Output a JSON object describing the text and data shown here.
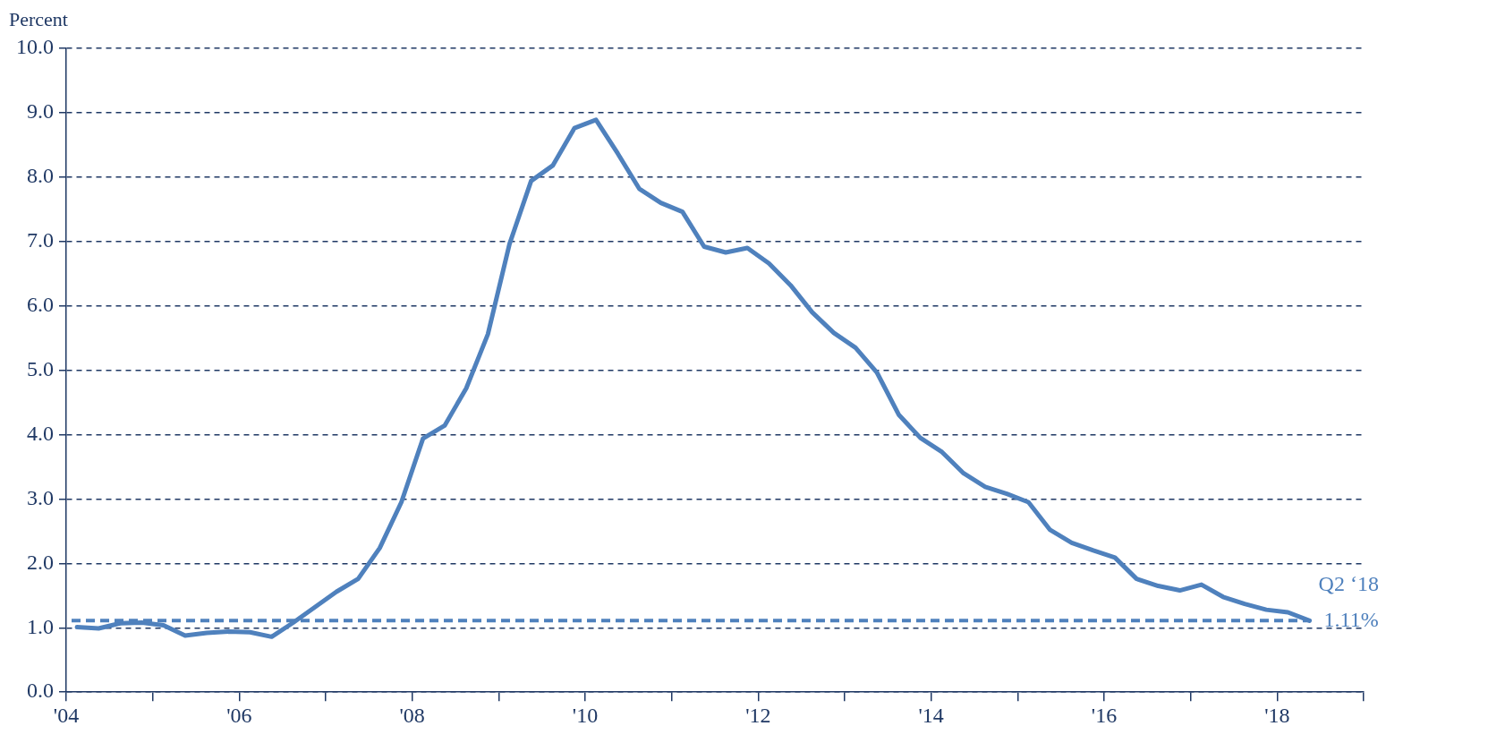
{
  "chart_data": {
    "type": "line",
    "ylabel": "Percent",
    "x": [
      2004.125,
      2004.375,
      2004.625,
      2004.875,
      2005.125,
      2005.375,
      2005.625,
      2005.875,
      2006.125,
      2006.375,
      2006.625,
      2006.875,
      2007.125,
      2007.375,
      2007.625,
      2007.875,
      2008.125,
      2008.375,
      2008.625,
      2008.875,
      2009.125,
      2009.375,
      2009.625,
      2009.875,
      2010.125,
      2010.375,
      2010.625,
      2010.875,
      2011.125,
      2011.375,
      2011.625,
      2011.875,
      2012.125,
      2012.375,
      2012.625,
      2012.875,
      2013.125,
      2013.375,
      2013.625,
      2013.875,
      2014.125,
      2014.375,
      2014.625,
      2014.875,
      2015.125,
      2015.375,
      2015.625,
      2015.875,
      2016.125,
      2016.375,
      2016.625,
      2016.875,
      2017.125,
      2017.375,
      2017.625,
      2017.875,
      2018.125,
      2018.375
    ],
    "series": [
      {
        "color": "#4f81bd",
        "values": [
          1.01,
          0.99,
          1.07,
          1.08,
          1.04,
          0.88,
          0.92,
          0.94,
          0.93,
          0.86,
          1.08,
          1.32,
          1.56,
          1.76,
          2.24,
          2.95,
          3.94,
          4.14,
          4.72,
          5.56,
          6.96,
          7.94,
          8.18,
          8.76,
          8.89,
          8.37,
          7.82,
          7.6,
          7.46,
          6.92,
          6.83,
          6.9,
          6.66,
          6.32,
          5.9,
          5.58,
          5.35,
          4.96,
          4.31,
          3.95,
          3.73,
          3.4,
          3.19,
          3.08,
          2.95,
          2.52,
          2.32,
          2.2,
          2.09,
          1.76,
          1.65,
          1.58,
          1.67,
          1.48,
          1.37,
          1.28,
          1.24,
          1.11
        ]
      }
    ],
    "xlim": [
      2004,
      2019
    ],
    "xticks": [
      {
        "value": 2004,
        "label": "'04"
      },
      {
        "value": 2005,
        "label": null
      },
      {
        "value": 2006,
        "label": "'06"
      },
      {
        "value": 2007,
        "label": null
      },
      {
        "value": 2008,
        "label": "'08"
      },
      {
        "value": 2009,
        "label": null
      },
      {
        "value": 2010,
        "label": "'10"
      },
      {
        "value": 2011,
        "label": null
      },
      {
        "value": 2012,
        "label": "'12"
      },
      {
        "value": 2013,
        "label": null
      },
      {
        "value": 2014,
        "label": "'14"
      },
      {
        "value": 2015,
        "label": null
      },
      {
        "value": 2016,
        "label": "'16"
      },
      {
        "value": 2017,
        "label": null
      },
      {
        "value": 2018,
        "label": "'18"
      },
      {
        "value": 2019,
        "label": null
      }
    ],
    "ylim": [
      0,
      10
    ],
    "yticks": [
      {
        "value": 0,
        "label": "0.0"
      },
      {
        "value": 1,
        "label": "1.0"
      },
      {
        "value": 2,
        "label": "2.0"
      },
      {
        "value": 3,
        "label": "3.0"
      },
      {
        "value": 4,
        "label": "4.0"
      },
      {
        "value": 5,
        "label": "5.0"
      },
      {
        "value": 6,
        "label": "6.0"
      },
      {
        "value": 7,
        "label": "7.0"
      },
      {
        "value": 8,
        "label": "8.0"
      },
      {
        "value": 9,
        "label": "9.0"
      },
      {
        "value": 10,
        "label": "10.0"
      }
    ],
    "grid": "y",
    "legend": false,
    "marker": "none",
    "line_style": "solid",
    "ref_lines": [
      {
        "axis": "y",
        "value": 1.11,
        "label": "1.11%",
        "color": "#4f81bd",
        "line_style": "dashed"
      }
    ],
    "annotations": [
      {
        "text": "Q2 ‘18",
        "x": 2018.375,
        "y": 1.11
      }
    ]
  }
}
